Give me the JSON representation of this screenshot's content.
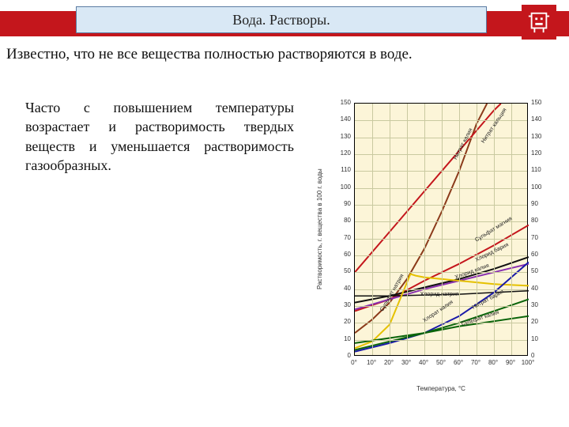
{
  "header": {
    "title": "Вода. Растворы.",
    "bar_color": "#c4161c",
    "title_bg": "#d9e8f5",
    "title_border": "#5b7ca3"
  },
  "intro_text": "Известно, что не все вещества полностью растворяются в воде.",
  "body_text": "Часто с повышением температуры возрастает и растворимость твердых веществ и уменьшается растворимость газообразных.",
  "chart": {
    "type": "line",
    "background_color": "#fcf5d8",
    "grid_color": "#c9c9a0",
    "border_color": "#000000",
    "x_axis": {
      "label": "Температура, °С",
      "min": 0,
      "max": 100,
      "step": 10,
      "ticks": [
        "0°",
        "10°",
        "20°",
        "30°",
        "40°",
        "50°",
        "60°",
        "70°",
        "80°",
        "90°",
        "100°"
      ]
    },
    "y_axis": {
      "label": "Растворимость, г. вещества в 100 г. воды",
      "min": 0,
      "max": 150,
      "step": 10,
      "ticks_left": [
        "0",
        "10",
        "20",
        "30",
        "40",
        "50",
        "60",
        "70",
        "80",
        "90",
        "100",
        "110",
        "120",
        "130",
        "140",
        "150"
      ],
      "ticks_right": [
        "0",
        "10",
        "20",
        "30",
        "40",
        "50",
        "60",
        "70",
        "80",
        "90",
        "100",
        "110",
        "120",
        "130",
        "140",
        "150"
      ]
    },
    "curves": [
      {
        "name": "Нитрат калия",
        "color": "#8b3a1a",
        "width": 2,
        "points": [
          [
            0,
            14
          ],
          [
            10,
            22
          ],
          [
            20,
            32
          ],
          [
            30,
            46
          ],
          [
            40,
            64
          ],
          [
            50,
            86
          ],
          [
            60,
            110
          ],
          [
            70,
            138
          ],
          [
            76,
            150
          ]
        ],
        "label_pos": [
          58,
          118
        ],
        "label_rot": -62
      },
      {
        "name": "Нитрат кальция",
        "color": "#c4161c",
        "width": 2,
        "points": [
          [
            0,
            50
          ],
          [
            20,
            74
          ],
          [
            40,
            98
          ],
          [
            60,
            122
          ],
          [
            80,
            146
          ],
          [
            84,
            150
          ]
        ],
        "label_pos": [
          74,
          128
        ],
        "label_rot": -56
      },
      {
        "name": "Сульфат магния",
        "color": "#c4161c",
        "width": 2,
        "points": [
          [
            0,
            27
          ],
          [
            20,
            34
          ],
          [
            40,
            45
          ],
          [
            60,
            55
          ],
          [
            80,
            66
          ],
          [
            100,
            78
          ]
        ],
        "label_pos": [
          70,
          70
        ],
        "label_rot": -32
      },
      {
        "name": "Хлорид бария",
        "color": "#111111",
        "width": 2,
        "points": [
          [
            0,
            32
          ],
          [
            20,
            36
          ],
          [
            40,
            41
          ],
          [
            60,
            46
          ],
          [
            80,
            52
          ],
          [
            100,
            59
          ]
        ],
        "label_pos": [
          70,
          58
        ],
        "label_rot": -26
      },
      {
        "name": "Хлорид калия",
        "color": "#8a2fb0",
        "width": 2,
        "points": [
          [
            0,
            28
          ],
          [
            20,
            34
          ],
          [
            40,
            40
          ],
          [
            60,
            45
          ],
          [
            80,
            50
          ],
          [
            100,
            55
          ]
        ],
        "label_pos": [
          58,
          48
        ],
        "label_rot": -20
      },
      {
        "name": "Хлорид натрия",
        "color": "#111111",
        "width": 1.5,
        "points": [
          [
            0,
            36
          ],
          [
            20,
            36
          ],
          [
            40,
            36.5
          ],
          [
            60,
            37
          ],
          [
            80,
            38
          ],
          [
            100,
            39
          ]
        ],
        "label_pos": [
          38,
          38
        ],
        "label_rot": 0
      },
      {
        "name": "Сульфат натрия",
        "color": "#e5c100",
        "width": 2,
        "points": [
          [
            0,
            5
          ],
          [
            10,
            9
          ],
          [
            20,
            19
          ],
          [
            32,
            49
          ],
          [
            35,
            48
          ],
          [
            40,
            47
          ],
          [
            60,
            45
          ],
          [
            80,
            43
          ],
          [
            100,
            42
          ]
        ],
        "label_pos": [
          16,
          28
        ],
        "label_rot": -60
      },
      {
        "name": "Хлорат калия",
        "color": "#1a1aa8",
        "width": 2,
        "points": [
          [
            0,
            3
          ],
          [
            20,
            8
          ],
          [
            40,
            14
          ],
          [
            60,
            24
          ],
          [
            80,
            38
          ],
          [
            100,
            56
          ]
        ],
        "label_pos": [
          40,
          22
        ],
        "label_rot": -34
      },
      {
        "name": "Нитрат бария",
        "color": "#0a640a",
        "width": 2,
        "points": [
          [
            0,
            4
          ],
          [
            20,
            9
          ],
          [
            40,
            14
          ],
          [
            60,
            20
          ],
          [
            80,
            27
          ],
          [
            100,
            34
          ]
        ],
        "label_pos": [
          68,
          30
        ],
        "label_rot": -28
      },
      {
        "name": "Сульфат калия",
        "color": "#0a640a",
        "width": 2,
        "points": [
          [
            0,
            8
          ],
          [
            20,
            11
          ],
          [
            40,
            14
          ],
          [
            60,
            18
          ],
          [
            80,
            21
          ],
          [
            100,
            24
          ]
        ],
        "label_pos": [
          62,
          20
        ],
        "label_rot": -18
      }
    ],
    "label_fontsize": 8,
    "tick_fontsize": 8
  }
}
